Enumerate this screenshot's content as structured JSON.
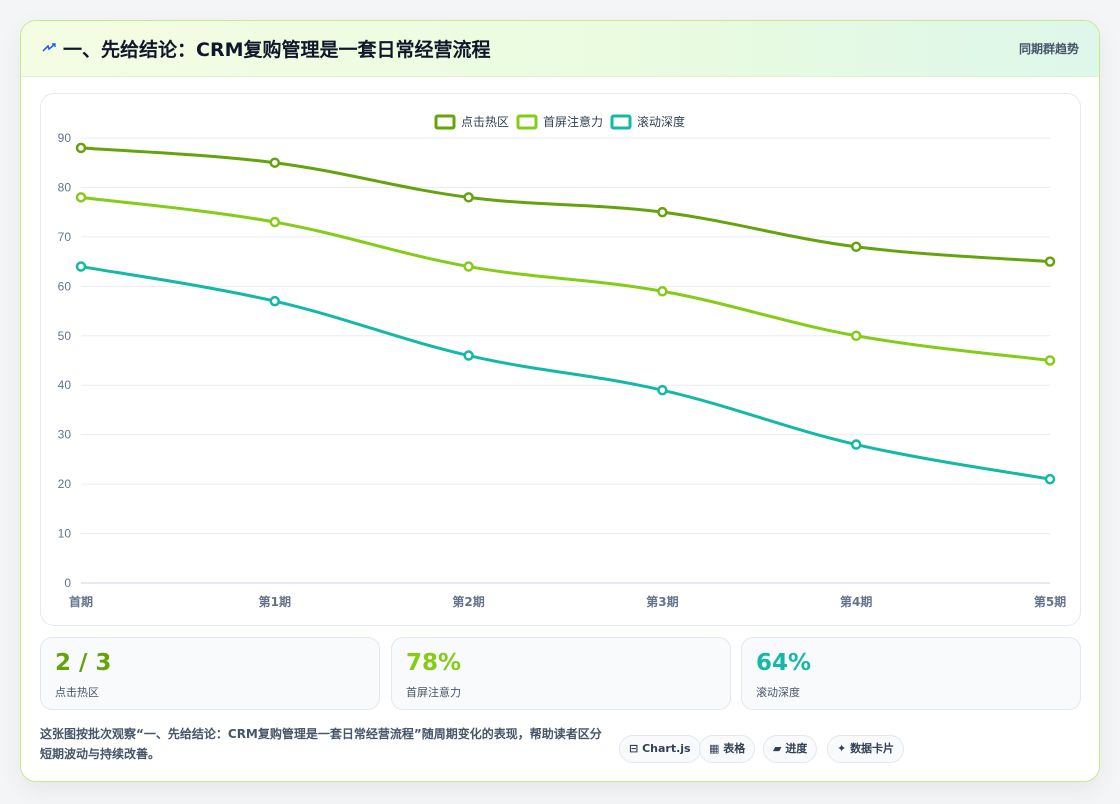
{
  "header": {
    "icon": "bolt-icon",
    "title": "一、先给结论：CRM复购管理是一套日常经营流程",
    "link_label": "同期群趋势"
  },
  "chart_data": {
    "type": "line",
    "categories": [
      "首期",
      "第1期",
      "第2期",
      "第3期",
      "第4期",
      "第5期"
    ],
    "series": [
      {
        "name": "点击热区",
        "color": "#65a30d",
        "values": [
          88,
          85,
          78,
          75,
          68,
          65
        ]
      },
      {
        "name": "首屏注意力",
        "color": "#84cc16",
        "values": [
          78,
          73,
          64,
          59,
          50,
          45
        ]
      },
      {
        "name": "滚动深度",
        "color": "#14b8a6",
        "values": [
          64,
          57,
          46,
          39,
          28,
          21
        ]
      }
    ],
    "ylim": [
      0,
      90
    ],
    "yticks": [
      0,
      10,
      20,
      30,
      40,
      50,
      60,
      70,
      80,
      90
    ],
    "grid": true,
    "legend_position": "top-center"
  },
  "stats": [
    {
      "value": "2 / 3",
      "label": "点击热区",
      "color": "#65a30d"
    },
    {
      "value": "78%",
      "label": "首屏注意力",
      "color": "#84cc16"
    },
    {
      "value": "64%",
      "label": "滚动深度",
      "color": "#14b8a6"
    }
  ],
  "footer": {
    "description": "这张图按批次观察“一、先给结论：CRM复购管理是一套日常经营流程”随周期变化的表现，帮助读者区分短期波动与持续改善。",
    "chips": [
      {
        "icon": "code-icon",
        "glyph": "⊟",
        "label": "Chart.js"
      },
      {
        "icon": "table-icon",
        "glyph": "▦",
        "label": "表格"
      },
      {
        "icon": "progress-icon",
        "glyph": "▰",
        "label": "进度"
      },
      {
        "icon": "sparkle-icon",
        "glyph": "✦",
        "label": "数据卡片"
      }
    ]
  }
}
